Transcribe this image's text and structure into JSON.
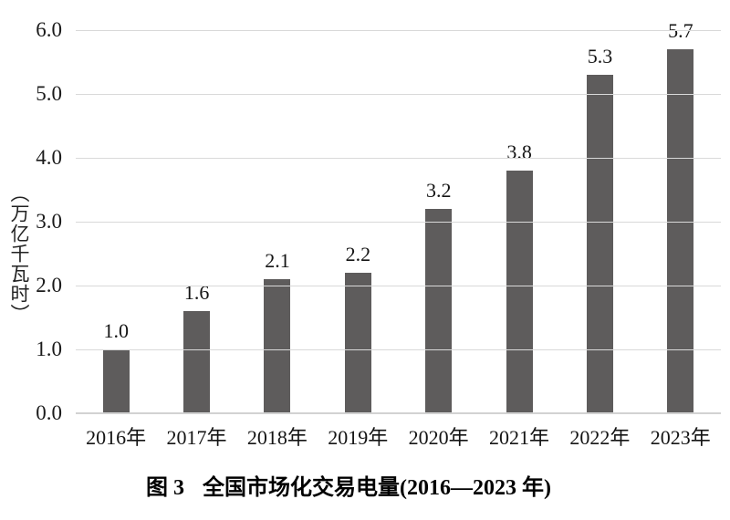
{
  "chart_data": {
    "type": "bar",
    "title": "图 3 全国市场化交易电量(2016—2023 年)",
    "categories": [
      "2016年",
      "2017年",
      "2018年",
      "2019年",
      "2020年",
      "2021年",
      "2022年",
      "2023年"
    ],
    "values": [
      1.0,
      1.6,
      2.1,
      2.2,
      3.2,
      3.8,
      5.3,
      5.7
    ],
    "value_labels": [
      "1.0",
      "1.6",
      "2.1",
      "2.2",
      "3.2",
      "3.8",
      "5.3",
      "5.7"
    ],
    "xlabel": "",
    "ylabel": "（万亿千瓦时）",
    "ylim": [
      0,
      6
    ],
    "y_tick_interval": 1.0,
    "y_ticks": [
      "0.0",
      "1.0",
      "2.0",
      "3.0",
      "4.0",
      "5.0",
      "6.0"
    ],
    "grid": true,
    "legend_position": "none",
    "bar_color": "#5e5c5c",
    "gridline_color": "#d9d9d9",
    "background_color": "#ffffff"
  },
  "y_axis": {
    "unit_label": "（万亿千瓦时）"
  },
  "caption": {
    "figure_label": "图 3",
    "title": "全国市场化交易电量(2016—2023 年)"
  }
}
